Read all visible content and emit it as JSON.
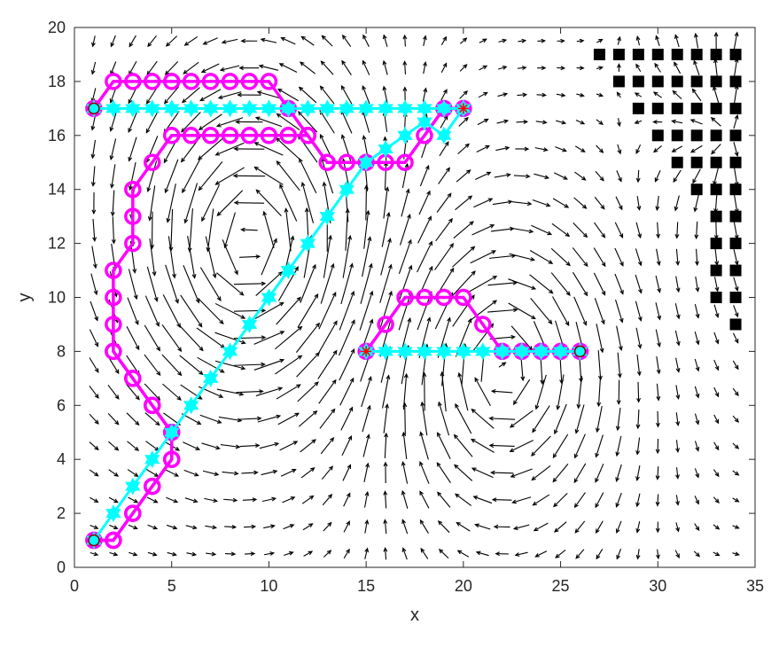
{
  "chart_data": {
    "type": "scatter",
    "xlabel": "x",
    "ylabel": "y",
    "xlim": [
      0,
      35
    ],
    "ylim": [
      0,
      20
    ],
    "x_ticks": [
      0,
      5,
      10,
      15,
      20,
      25,
      30,
      35
    ],
    "y_ticks": [
      0,
      2,
      4,
      6,
      8,
      10,
      12,
      14,
      16,
      18,
      20
    ],
    "grid": false,
    "legend": "none",
    "colors": {
      "quiver": "#000000",
      "path_a": "#ff00ff",
      "path_b": "#00ffff",
      "start_marker": "#8b0000",
      "goal_marker": "#ff0000",
      "obstacle": "#000000",
      "axes": "#262626"
    },
    "series": [
      {
        "marker": "circle",
        "values": [
          [
            1,
            17
          ],
          [
            2,
            18
          ],
          [
            3,
            18
          ],
          [
            4,
            18
          ],
          [
            5,
            18
          ],
          [
            6,
            18
          ],
          [
            7,
            18
          ],
          [
            8,
            18
          ],
          [
            9,
            18
          ],
          [
            10,
            18
          ],
          [
            11,
            17
          ],
          [
            12,
            16
          ],
          [
            11,
            16
          ],
          [
            10,
            16
          ],
          [
            9,
            16
          ],
          [
            8,
            16
          ],
          [
            7,
            16
          ],
          [
            6,
            16
          ],
          [
            5,
            16
          ],
          [
            4,
            15
          ],
          [
            3,
            14
          ],
          [
            3,
            13
          ],
          [
            3,
            12
          ],
          [
            2,
            11
          ],
          [
            2,
            10
          ],
          [
            2,
            9
          ],
          [
            2,
            8
          ],
          [
            3,
            7
          ],
          [
            4,
            6
          ],
          [
            5,
            5
          ],
          [
            5,
            4
          ],
          [
            4,
            3
          ],
          [
            3,
            2
          ],
          [
            2,
            1
          ],
          [
            1,
            1
          ]
        ]
      },
      {
        "marker": "circle",
        "values": [
          [
            1,
            1
          ],
          [
            2,
            1
          ],
          [
            3,
            2
          ],
          [
            4,
            3
          ],
          [
            5,
            4
          ],
          [
            5,
            5
          ],
          [
            4,
            6
          ],
          [
            3,
            7
          ],
          [
            2,
            8
          ]
        ]
      },
      {
        "marker": "circle",
        "values": [
          [
            12,
            16
          ],
          [
            13,
            15
          ],
          [
            14,
            15
          ],
          [
            15,
            15
          ],
          [
            16,
            15
          ],
          [
            17,
            15
          ],
          [
            18,
            16
          ],
          [
            19,
            17
          ],
          [
            20,
            17
          ]
        ]
      },
      {
        "marker": "hexagram",
        "values": [
          [
            1,
            1
          ],
          [
            2,
            2
          ],
          [
            3,
            3
          ],
          [
            4,
            4
          ],
          [
            5,
            5
          ],
          [
            6,
            6
          ],
          [
            7,
            7
          ],
          [
            8,
            8
          ],
          [
            9,
            9
          ],
          [
            10,
            10
          ],
          [
            11,
            11
          ],
          [
            12,
            12
          ],
          [
            13,
            13
          ],
          [
            14,
            14
          ],
          [
            15,
            15
          ],
          [
            16,
            15.5
          ],
          [
            17,
            16
          ],
          [
            18,
            16.5
          ],
          [
            19,
            16
          ],
          [
            20,
            17
          ],
          [
            19,
            17
          ],
          [
            18,
            17
          ],
          [
            17,
            17
          ],
          [
            16,
            17
          ],
          [
            15,
            17
          ],
          [
            14,
            17
          ],
          [
            13,
            17
          ],
          [
            12,
            17
          ],
          [
            11,
            17
          ],
          [
            10,
            17
          ],
          [
            9,
            17
          ],
          [
            8,
            17
          ],
          [
            7,
            17
          ],
          [
            6,
            17
          ],
          [
            5,
            17
          ],
          [
            4,
            17
          ],
          [
            3,
            17
          ],
          [
            2,
            17
          ],
          [
            1,
            17
          ]
        ]
      },
      {
        "marker": "circle",
        "values": [
          [
            15,
            8
          ],
          [
            16,
            9
          ],
          [
            17,
            10
          ],
          [
            18,
            10
          ],
          [
            19,
            10
          ],
          [
            20,
            10
          ],
          [
            21,
            9
          ],
          [
            22,
            8
          ],
          [
            23,
            8
          ],
          [
            24,
            8
          ],
          [
            25,
            8
          ],
          [
            26,
            8
          ]
        ]
      },
      {
        "marker": "hexagram",
        "values": [
          [
            15,
            8
          ],
          [
            16,
            8
          ],
          [
            17,
            8
          ],
          [
            18,
            8
          ],
          [
            19,
            8
          ],
          [
            20,
            8
          ],
          [
            21,
            8
          ],
          [
            22,
            8
          ],
          [
            23,
            8
          ],
          [
            24,
            8
          ],
          [
            25,
            8
          ],
          [
            26,
            8
          ]
        ]
      }
    ],
    "start_points": [
      [
        1,
        17
      ],
      [
        1,
        1
      ],
      [
        26,
        8
      ]
    ],
    "goal_points": [
      [
        20,
        17
      ],
      [
        15,
        8
      ]
    ],
    "obstacles": [
      {
        "y": 19,
        "x_from": 27,
        "x_to": 34
      },
      {
        "y": 18,
        "x_from": 28,
        "x_to": 34
      },
      {
        "y": 17,
        "x_from": 29,
        "x_to": 34
      },
      {
        "y": 16,
        "x_from": 30,
        "x_to": 34
      },
      {
        "y": 15,
        "x_from": 31,
        "x_to": 34
      },
      {
        "y": 14,
        "x_from": 32,
        "x_to": 34
      },
      {
        "y": 13,
        "x_from": 33,
        "x_to": 34
      },
      {
        "y": 12,
        "x_from": 33,
        "x_to": 34
      },
      {
        "y": 11,
        "x_from": 33,
        "x_to": 34
      },
      {
        "y": 10,
        "x_from": 33,
        "x_to": 34
      },
      {
        "y": 9,
        "x_from": 34,
        "x_to": 34
      }
    ],
    "vector_field": {
      "x_range": [
        1,
        34
      ],
      "y_range": [
        0.5,
        19.5
      ],
      "step": 1,
      "vortices": [
        {
          "x": 9,
          "y": 12,
          "direction": "counterclockwise"
        },
        {
          "x": 22,
          "y": 7.5,
          "direction": "clockwise"
        }
      ],
      "background_flow": "rightward"
    }
  }
}
